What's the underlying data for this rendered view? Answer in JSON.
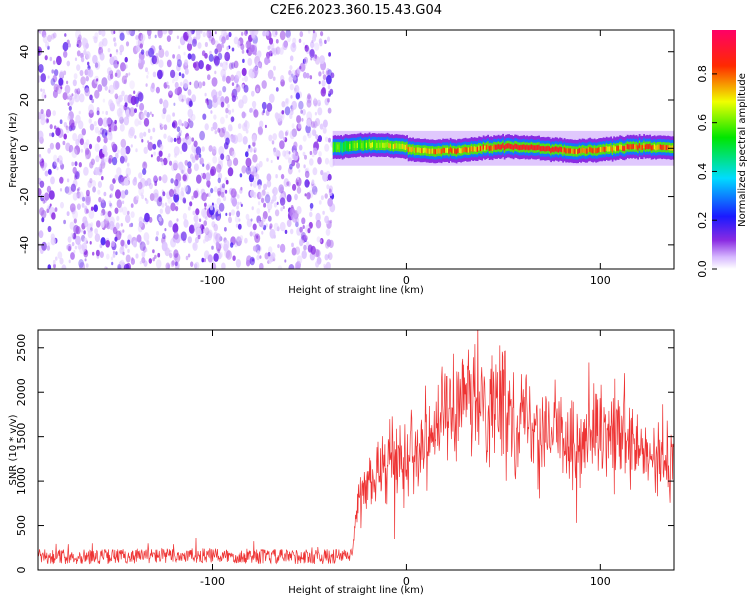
{
  "figure": {
    "title": "C2E6.2023.360.15.43.G04"
  },
  "chart_data": [
    {
      "type": "heatmap",
      "xlabel": "Height of straight line (km)",
      "ylabel": "Frequency (Hz)",
      "xlim": [
        -190,
        138
      ],
      "ylim": [
        -50,
        49
      ],
      "xticks": [
        -100,
        0,
        100
      ],
      "yticks": [
        -40,
        -20,
        0,
        20,
        40
      ],
      "colorbar": {
        "label": "Normalized spectral amplitude",
        "range": [
          0,
          0.98
        ],
        "ticks": [
          0.0,
          0.2,
          0.4,
          0.6,
          0.8
        ],
        "colormap": "rainbow (white, violet, blue, cyan, green, yellow, red)"
      },
      "regions": [
        {
          "name": "noise",
          "x": [
            -190,
            -38
          ],
          "freq": [
            -50,
            49
          ],
          "amplitude": [
            0.0,
            0.15
          ]
        },
        {
          "name": "signal",
          "x": [
            -38,
            138
          ],
          "freq_center_hz": 0,
          "freq_halfwidth_hz": 3,
          "peak_amplitude": 0.95
        }
      ]
    },
    {
      "type": "line",
      "xlabel": "Height of straight line (km)",
      "ylabel": "SNR (10 * v/v)",
      "xlim": [
        -190,
        138
      ],
      "ylim": [
        0,
        2700
      ],
      "xticks": [
        -100,
        0,
        100
      ],
      "yticks": [
        0,
        500,
        1000,
        1500,
        2000,
        2500
      ],
      "color": "#ee3333",
      "series": [
        {
          "x": [
            -190,
            -160,
            -130,
            -100,
            -70,
            -40,
            -28,
            -25,
            -20,
            -10,
            0,
            10,
            20,
            30,
            40,
            50,
            60,
            70,
            80,
            90,
            100,
            110,
            120,
            130,
            138
          ],
          "y": [
            150,
            150,
            160,
            160,
            150,
            150,
            160,
            800,
            950,
            1200,
            1300,
            1500,
            1750,
            1850,
            1900,
            1850,
            1750,
            1650,
            1500,
            1400,
            1450,
            1500,
            1300,
            1200,
            1250
          ]
        }
      ]
    }
  ]
}
